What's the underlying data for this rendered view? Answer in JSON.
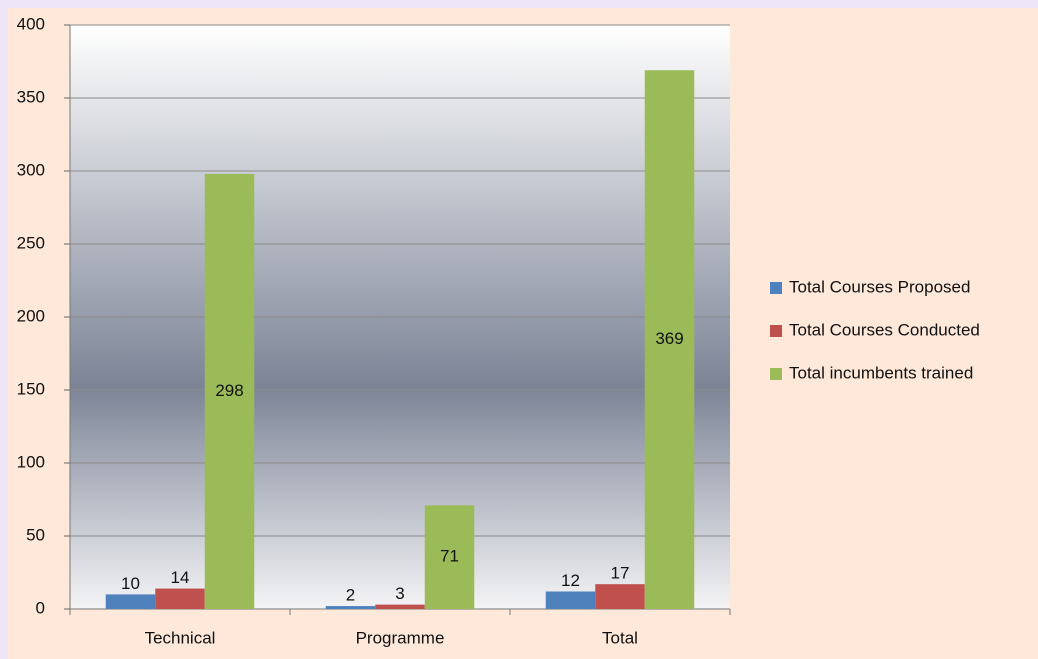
{
  "chart_data": {
    "type": "bar",
    "categories": [
      "Technical",
      "Programme",
      "Total"
    ],
    "series": [
      {
        "name": "Total Courses Proposed",
        "color": "#4f81bd",
        "values": [
          10,
          2,
          12
        ]
      },
      {
        "name": "Total Courses Conducted",
        "color": "#c0504d",
        "values": [
          14,
          3,
          17
        ]
      },
      {
        "name": "Total incumbents trained",
        "color": "#9bbb59",
        "values": [
          298,
          71,
          369
        ]
      }
    ],
    "ylim": [
      0,
      400
    ],
    "yticks": [
      0,
      50,
      100,
      150,
      200,
      250,
      300,
      350,
      400
    ],
    "grid": true,
    "legend": "right"
  }
}
